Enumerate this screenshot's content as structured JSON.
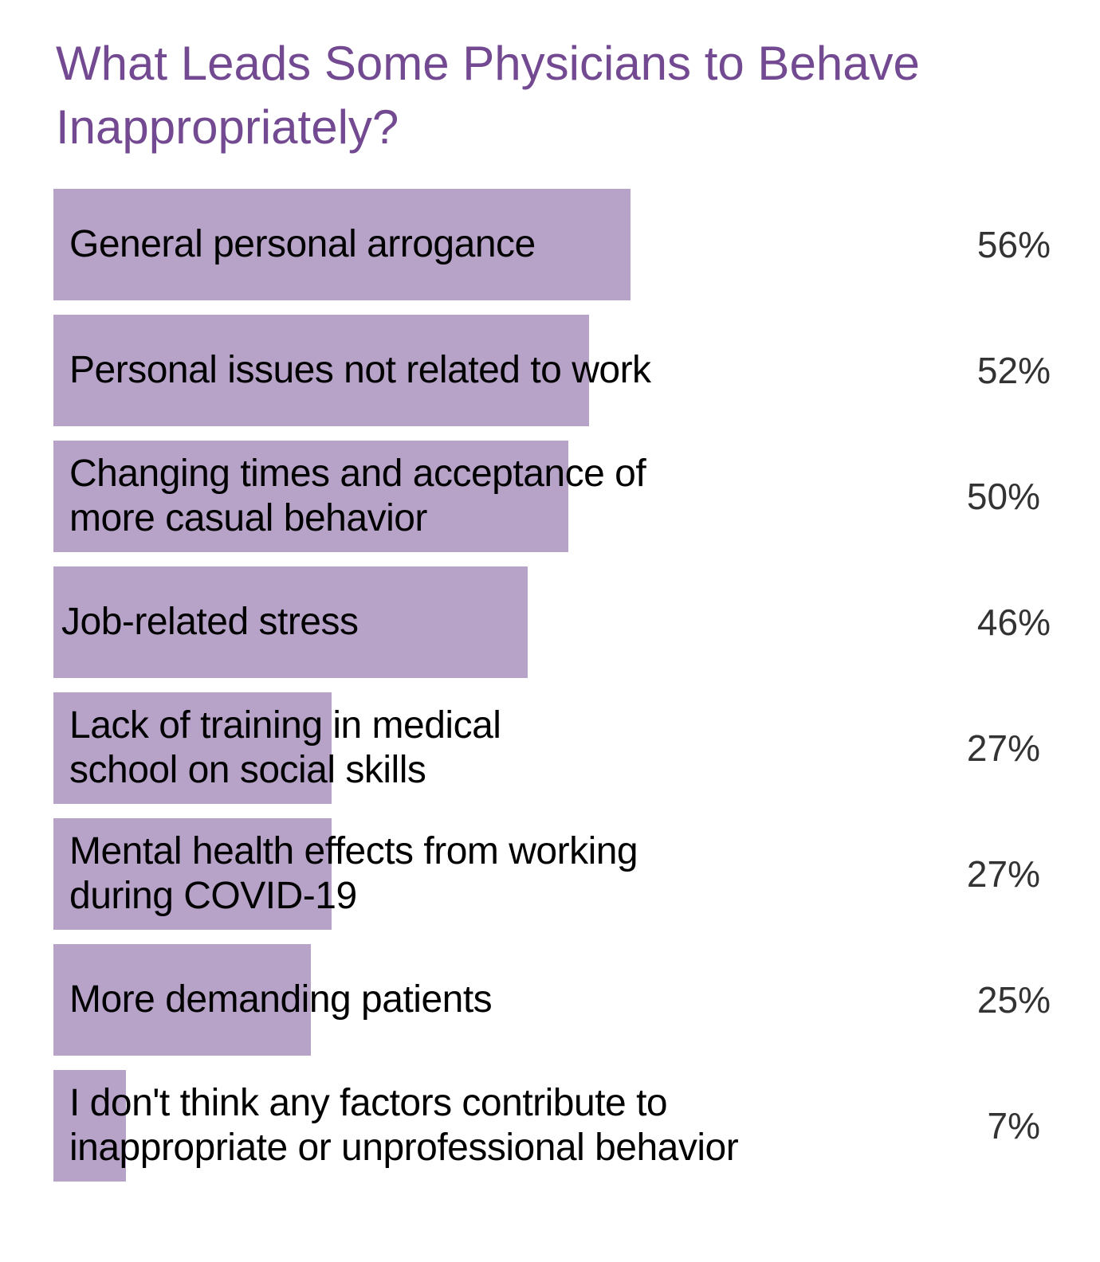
{
  "chart_data": {
    "type": "bar",
    "orientation": "horizontal",
    "title": "What Leads Some Physicians to Behave Inappropriately?",
    "categories": [
      "General personal arrogance",
      "Personal issues not related to work",
      "Changing times and acceptance of\nmore casual behavior",
      "Job-related stress",
      "Lack of training in medical\nschool on social skills",
      "Mental health effects from working\nduring COVID-19",
      "More demanding patients",
      "I don't think any factors contribute to\ninappropriate or unprofessional behavior"
    ],
    "values": [
      56,
      52,
      50,
      46,
      27,
      27,
      25,
      7
    ],
    "value_labels": [
      "56%",
      "52%",
      "50%",
      "46%",
      "27%",
      "27%",
      "25%",
      "7%"
    ],
    "unit": "%",
    "xlim": [
      0,
      100
    ],
    "grid": false,
    "legend": "none",
    "colors": {
      "bar": "#b7a2c8",
      "title": "#734a91",
      "label": "#000000",
      "value": "#333333"
    }
  }
}
